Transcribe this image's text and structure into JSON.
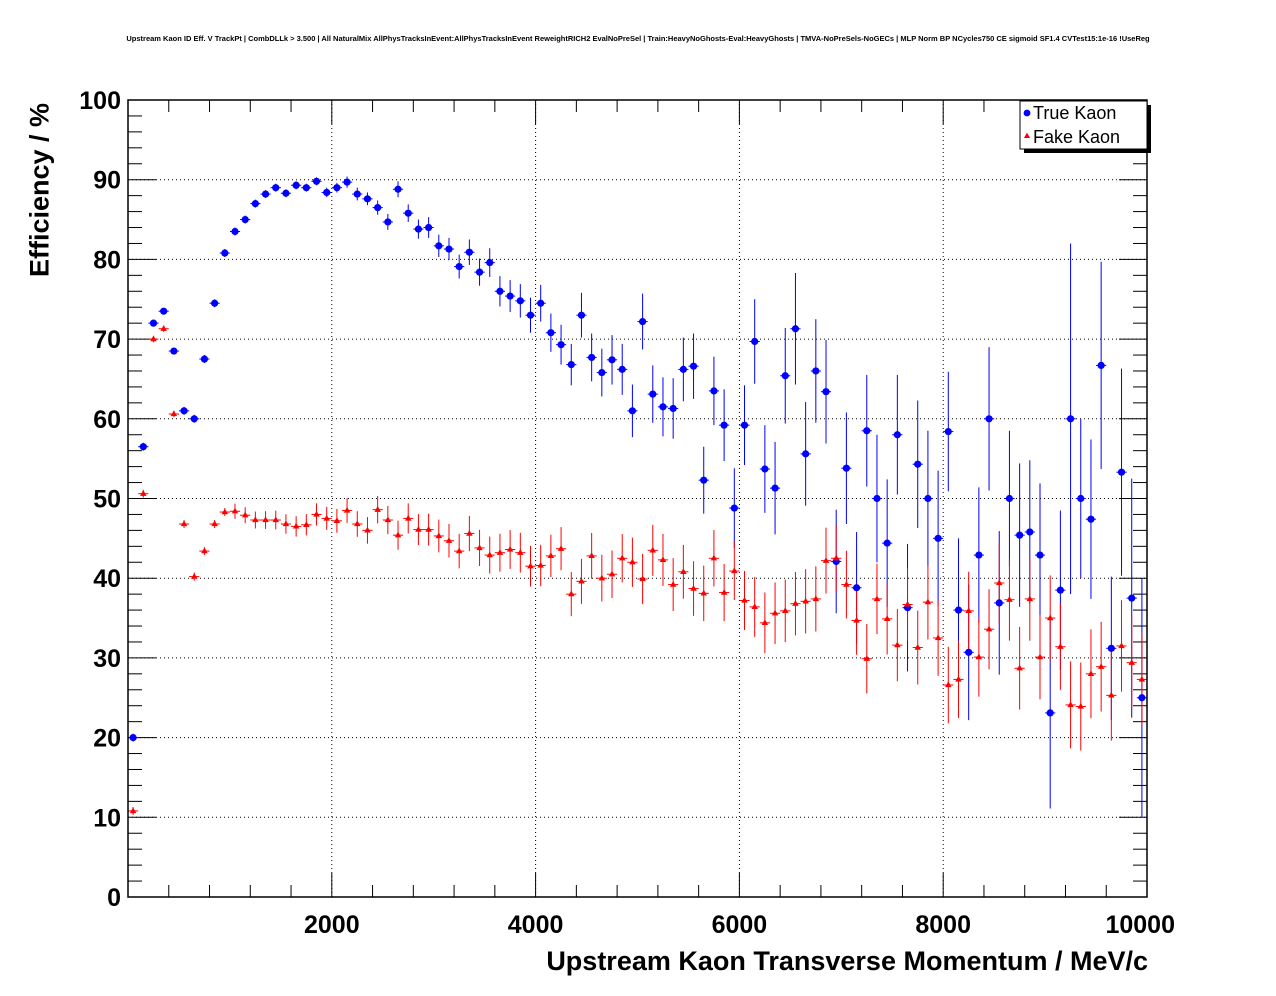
{
  "chart_data": {
    "type": "scatter",
    "title": "Upstream Kaon ID Eff. V TrackPt | CombDLLk > 3.500 | All NaturalMix AllPhysTracksInEvent:AllPhysTracksInEvent ReweightRICH2 EvalNoPreSel | Train:HeavyNoGhosts-Eval:HeavyGhosts | TMVA-NoPreSels-NoGECs | MLP Norm BP NCycles750 CE sigmoid SF1.4 CVTest15:1e-16 !UseReg",
    "xlabel": "Upstream Kaon Transverse Momentum / MeV/c",
    "ylabel": "Efficiency / %",
    "xlim": [
      0,
      10000
    ],
    "ylim": [
      0,
      100
    ],
    "xticks": [
      "2000",
      "4000",
      "6000",
      "8000",
      "10000"
    ],
    "yticks": [
      "0",
      "10",
      "20",
      "30",
      "40",
      "50",
      "60",
      "70",
      "80",
      "90",
      "100"
    ],
    "grid": true,
    "legend_position": "top-right",
    "colors": {
      "true_kaon": "#0000ff",
      "fake_kaon": "#ff0000"
    },
    "series": [
      {
        "name": "True Kaon",
        "marker": "circle",
        "x": [
          50,
          150,
          250,
          350,
          450,
          550,
          650,
          750,
          850,
          950,
          1050,
          1150,
          1250,
          1350,
          1450,
          1550,
          1650,
          1750,
          1850,
          1950,
          2050,
          2150,
          2250,
          2350,
          2450,
          2550,
          2650,
          2750,
          2850,
          2950,
          3050,
          3150,
          3250,
          3350,
          3450,
          3550,
          3650,
          3750,
          3850,
          3950,
          4050,
          4150,
          4250,
          4350,
          4450,
          4550,
          4650,
          4750,
          4850,
          4950,
          5050,
          5150,
          5250,
          5350,
          5450,
          5550,
          5650,
          5750,
          5850,
          5950,
          6050,
          6150,
          6250,
          6350,
          6450,
          6550,
          6650,
          6750,
          6850,
          6950,
          7050,
          7150,
          7250,
          7350,
          7450,
          7550,
          7650,
          7750,
          7850,
          7950,
          8050,
          8150,
          8250,
          8350,
          8450,
          8550,
          8650,
          8750,
          8850,
          8950,
          9050,
          9150,
          9250,
          9350,
          9450,
          9550,
          9650,
          9750,
          9850,
          9950
        ],
        "y": [
          20,
          56.5,
          72,
          73.5,
          68.5,
          61,
          60,
          67.5,
          74.5,
          80.8,
          83.5,
          85,
          87,
          88.2,
          89,
          88.3,
          89.3,
          89,
          89.8,
          88.4,
          89,
          89.7,
          88.2,
          87.6,
          86.5,
          84.7,
          88.8,
          85.8,
          83.8,
          84,
          81.7,
          81.3,
          79.1,
          80.9,
          78.4,
          79.6,
          76,
          75.4,
          74.8,
          73,
          74.5,
          70.8,
          69.3,
          66.8,
          73,
          67.7,
          65.8,
          67.4,
          66.2,
          61,
          72.2,
          63.1,
          61.5,
          61.3,
          66.2,
          66.6,
          52.3,
          63.5,
          59.2,
          48.8,
          59.2,
          69.7,
          53.7,
          51.3,
          65.4,
          71.3,
          55.6,
          66,
          63.4,
          42.1,
          53.8,
          38.8,
          58.5,
          50,
          44.4,
          58,
          36.3,
          54.3,
          50,
          45,
          58.4,
          36,
          30.7,
          42.9,
          60,
          36.9,
          50,
          45.4,
          45.8,
          42.9,
          23.1,
          38.5,
          60,
          50,
          47.4,
          66.7,
          31.2,
          53.3,
          37.5,
          25
        ],
        "yerr": [
          0.5,
          0.5,
          0.4,
          0.4,
          0.4,
          0.5,
          0.5,
          0.5,
          0.5,
          0.5,
          0.5,
          0.5,
          0.5,
          0.5,
          0.5,
          0.5,
          0.5,
          0.5,
          0.5,
          0.6,
          0.6,
          0.7,
          0.8,
          0.8,
          0.9,
          1,
          1,
          1.1,
          1.2,
          1.3,
          1.4,
          1.4,
          1.5,
          1.6,
          1.7,
          1.8,
          1.9,
          2,
          2.1,
          2.2,
          2.3,
          2.4,
          2.5,
          2.6,
          2.8,
          3,
          3,
          3.1,
          3.2,
          3.3,
          3.5,
          3.6,
          3.7,
          3.8,
          4,
          4.1,
          4.2,
          4.3,
          4.5,
          5,
          5,
          5.3,
          5.5,
          5.8,
          6,
          7,
          6.5,
          6.5,
          6.5,
          6.5,
          7,
          7,
          7,
          8,
          8,
          7.5,
          8,
          8,
          8.5,
          8.5,
          7.5,
          9,
          8.5,
          8.5,
          9,
          9,
          8.5,
          9,
          9,
          9,
          12,
          10,
          22,
          10,
          10,
          13,
          9,
          13,
          15,
          15
        ]
      },
      {
        "name": "Fake Kaon",
        "marker": "triangle",
        "x": [
          50,
          150,
          250,
          350,
          450,
          550,
          650,
          750,
          850,
          950,
          1050,
          1150,
          1250,
          1350,
          1450,
          1550,
          1650,
          1750,
          1850,
          1950,
          2050,
          2150,
          2250,
          2350,
          2450,
          2550,
          2650,
          2750,
          2850,
          2950,
          3050,
          3150,
          3250,
          3350,
          3450,
          3550,
          3650,
          3750,
          3850,
          3950,
          4050,
          4150,
          4250,
          4350,
          4450,
          4550,
          4650,
          4750,
          4850,
          4950,
          5050,
          5150,
          5250,
          5350,
          5450,
          5550,
          5650,
          5750,
          5850,
          5950,
          6050,
          6150,
          6250,
          6350,
          6450,
          6550,
          6650,
          6750,
          6850,
          6950,
          7050,
          7150,
          7250,
          7350,
          7450,
          7550,
          7650,
          7750,
          7850,
          7950,
          8050,
          8150,
          8250,
          8350,
          8450,
          8550,
          8650,
          8750,
          8850,
          8950,
          9050,
          9150,
          9250,
          9350,
          9450,
          9550,
          9650,
          9750,
          9850,
          9950
        ],
        "y": [
          10.8,
          50.6,
          70,
          71.3,
          60.6,
          46.8,
          40.2,
          43.4,
          46.8,
          48.3,
          48.4,
          47.9,
          47.3,
          47.3,
          47.3,
          46.8,
          46.5,
          46.7,
          48,
          47.5,
          47.2,
          48.5,
          46.8,
          46,
          48.6,
          47.3,
          45.4,
          47.5,
          46.1,
          46.1,
          45.3,
          44.7,
          43.4,
          45.6,
          43.8,
          42.9,
          43.2,
          43.6,
          43.2,
          41.5,
          41.6,
          42.8,
          43.7,
          38,
          39.6,
          42.8,
          40,
          40.5,
          42.5,
          42,
          39.9,
          43.5,
          42.3,
          39.2,
          40.8,
          38.7,
          38.1,
          42.5,
          38.2,
          40.9,
          37.2,
          36.4,
          34.4,
          35.6,
          35.9,
          36.8,
          37.1,
          37.4,
          42.2,
          42.5,
          39.2,
          34.7,
          29.9,
          37.4,
          34.9,
          31.6,
          36.7,
          31.3,
          37,
          32.5,
          26.6,
          27.3,
          35.9,
          30.1,
          33.6,
          39.4,
          37.3,
          28.7,
          37.4,
          30.1,
          35,
          31.4,
          24.1,
          23.9,
          28,
          28.9,
          25.3,
          31.5,
          29.4,
          27.3
        ]
      }
    ]
  },
  "legend": {
    "items": [
      "True Kaon",
      "Fake Kaon"
    ]
  }
}
